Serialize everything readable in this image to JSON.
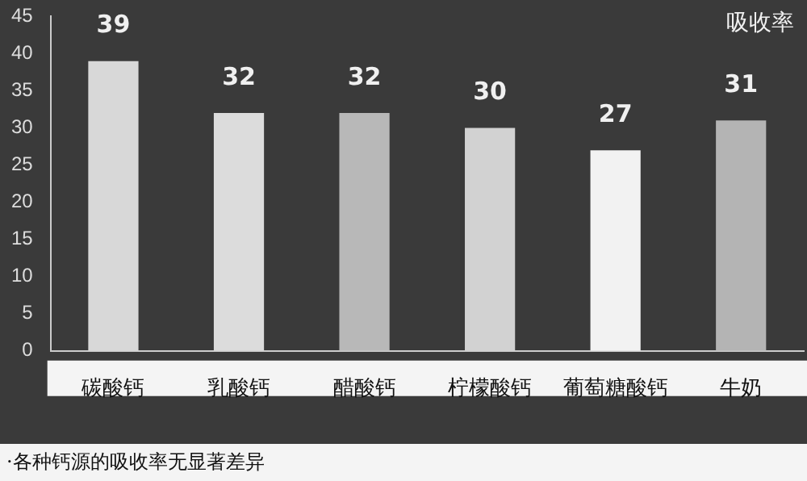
{
  "chart_data": {
    "type": "bar",
    "ylabel": "吸收率",
    "categories": [
      "碳酸钙",
      "乳酸钙",
      "醋酸钙",
      "柠檬酸钙",
      "葡萄糖酸钙",
      "牛奶"
    ],
    "values": [
      39,
      32,
      32,
      30,
      27,
      31
    ],
    "colors": [
      "#d8d8d8",
      "#dcdcdc",
      "#b8b8b8",
      "#d2d2d2",
      "#f2f2f2",
      "#b4b4b4"
    ],
    "ylim": [
      0,
      45
    ],
    "yticks": [
      0,
      5,
      10,
      15,
      20,
      25,
      30,
      35,
      40,
      45
    ],
    "grid": false,
    "data_labels": true,
    "annotations": [
      "·各种钙源的吸收率无显著差异"
    ]
  }
}
